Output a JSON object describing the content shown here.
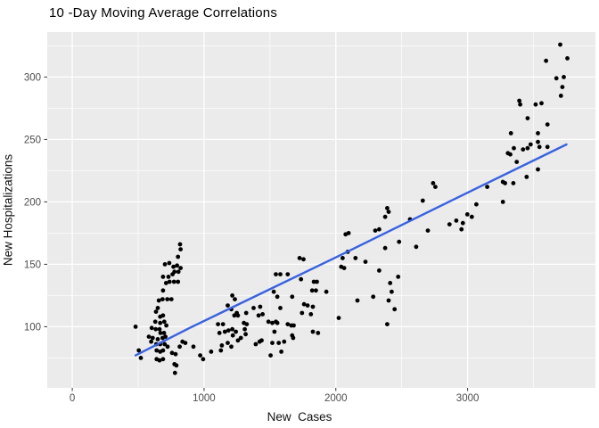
{
  "title": "10 -Day Moving Average Correlations",
  "colors": {
    "background": "#FFFFFF",
    "panel_bg": "#EBEBEB",
    "grid_major": "#FFFFFF",
    "grid_minor": "#FFFFFF",
    "point": "#000000",
    "smooth_line": "#3862E0",
    "tick_label": "#4D4D4D",
    "tick_mark": "#333333",
    "axis_title": "#111111"
  },
  "chart_data": {
    "type": "scatter",
    "title": "10 -Day Moving Average Correlations",
    "xlabel": "New  Cases",
    "ylabel": "New Hospitalizations",
    "xlim": [
      -190,
      3970
    ],
    "ylim": [
      51,
      336
    ],
    "xticks": [
      0,
      1000,
      2000,
      3000
    ],
    "yticks": [
      100,
      150,
      200,
      250,
      300
    ],
    "x_minor": [
      500,
      1500,
      2500,
      3500
    ],
    "y_minor": [
      75,
      125,
      175,
      225,
      275,
      325
    ],
    "grid": true,
    "legend": "none",
    "smooth_line": [
      [
        480,
        77
      ],
      [
        890,
        99
      ],
      [
        1970,
        154
      ],
      [
        3050,
        210
      ],
      [
        3750,
        246
      ]
    ],
    "points": [
      [
        818,
        166
      ],
      [
        822,
        162
      ],
      [
        802,
        156
      ],
      [
        703,
        150
      ],
      [
        736,
        151
      ],
      [
        768,
        148
      ],
      [
        795,
        149
      ],
      [
        822,
        147
      ],
      [
        775,
        144
      ],
      [
        806,
        144
      ],
      [
        689,
        140
      ],
      [
        730,
        140
      ],
      [
        761,
        142
      ],
      [
        712,
        135
      ],
      [
        738,
        136
      ],
      [
        772,
        136
      ],
      [
        802,
        136
      ],
      [
        689,
        129
      ],
      [
        657,
        121
      ],
      [
        685,
        122
      ],
      [
        721,
        122
      ],
      [
        752,
        122
      ],
      [
        649,
        115
      ],
      [
        635,
        112
      ],
      [
        667,
        108
      ],
      [
        689,
        109
      ],
      [
        630,
        104
      ],
      [
        667,
        103
      ],
      [
        698,
        104
      ],
      [
        714,
        101
      ],
      [
        480,
        100
      ],
      [
        603,
        99
      ],
      [
        633,
        98
      ],
      [
        662,
        98
      ],
      [
        581,
        92
      ],
      [
        610,
        91
      ],
      [
        649,
        90
      ],
      [
        669,
        95
      ],
      [
        696,
        95
      ],
      [
        685,
        91
      ],
      [
        707,
        92
      ],
      [
        599,
        88
      ],
      [
        637,
        86
      ],
      [
        667,
        86
      ],
      [
        701,
        86
      ],
      [
        836,
        88
      ],
      [
        858,
        87
      ],
      [
        815,
        84
      ],
      [
        505,
        81
      ],
      [
        640,
        81
      ],
      [
        667,
        80
      ],
      [
        689,
        81
      ],
      [
        723,
        84
      ],
      [
        520,
        75
      ],
      [
        640,
        74
      ],
      [
        662,
        73
      ],
      [
        689,
        74
      ],
      [
        757,
        79
      ],
      [
        784,
        78
      ],
      [
        775,
        70
      ],
      [
        790,
        69
      ],
      [
        779,
        63
      ],
      [
        919,
        84
      ],
      [
        971,
        77
      ],
      [
        993,
        74
      ],
      [
        1054,
        80
      ],
      [
        1106,
        102
      ],
      [
        1117,
        95
      ],
      [
        1128,
        81
      ],
      [
        1135,
        85
      ],
      [
        1144,
        102
      ],
      [
        1158,
        96
      ],
      [
        1180,
        117
      ],
      [
        1180,
        87
      ],
      [
        1185,
        97
      ],
      [
        1207,
        114
      ],
      [
        1207,
        84
      ],
      [
        1214,
        125
      ],
      [
        1214,
        98
      ],
      [
        1218,
        93
      ],
      [
        1230,
        109
      ],
      [
        1234,
        122
      ],
      [
        1241,
        96
      ],
      [
        1248,
        111
      ],
      [
        1257,
        109
      ],
      [
        1257,
        89
      ],
      [
        1279,
        91
      ],
      [
        1302,
        103
      ],
      [
        1309,
        98
      ],
      [
        1316,
        94
      ],
      [
        1320,
        111
      ],
      [
        1324,
        102
      ],
      [
        1376,
        115
      ],
      [
        1392,
        86
      ],
      [
        1414,
        109
      ],
      [
        1421,
        88
      ],
      [
        1426,
        116
      ],
      [
        1437,
        89
      ],
      [
        1444,
        110
      ],
      [
        1489,
        104
      ],
      [
        1505,
        77
      ],
      [
        1518,
        103
      ],
      [
        1518,
        87
      ],
      [
        1529,
        128
      ],
      [
        1534,
        96
      ],
      [
        1545,
        142
      ],
      [
        1545,
        104
      ],
      [
        1556,
        124
      ],
      [
        1556,
        103
      ],
      [
        1567,
        87
      ],
      [
        1579,
        142
      ],
      [
        1579,
        115
      ],
      [
        1586,
        80
      ],
      [
        1608,
        88
      ],
      [
        1635,
        142
      ],
      [
        1635,
        102
      ],
      [
        1662,
        101
      ],
      [
        1669,
        124
      ],
      [
        1669,
        93
      ],
      [
        1676,
        91
      ],
      [
        1680,
        101
      ],
      [
        1725,
        155
      ],
      [
        1736,
        138
      ],
      [
        1743,
        111
      ],
      [
        1755,
        154
      ],
      [
        1759,
        118
      ],
      [
        1786,
        117
      ],
      [
        1811,
        110
      ],
      [
        1820,
        129
      ],
      [
        1826,
        116
      ],
      [
        1826,
        96
      ],
      [
        1833,
        136
      ],
      [
        1849,
        129
      ],
      [
        1856,
        136
      ],
      [
        1865,
        95
      ],
      [
        1928,
        128
      ],
      [
        2022,
        107
      ],
      [
        2041,
        148
      ],
      [
        2052,
        155
      ],
      [
        2063,
        147
      ],
      [
        2074,
        174
      ],
      [
        2090,
        160
      ],
      [
        2097,
        175
      ],
      [
        2149,
        155
      ],
      [
        2164,
        121
      ],
      [
        2225,
        152
      ],
      [
        2284,
        124
      ],
      [
        2299,
        177
      ],
      [
        2329,
        178
      ],
      [
        2329,
        145
      ],
      [
        2374,
        188
      ],
      [
        2374,
        163
      ],
      [
        2390,
        195
      ],
      [
        2390,
        102
      ],
      [
        2401,
        192
      ],
      [
        2401,
        121
      ],
      [
        2412,
        135
      ],
      [
        2424,
        128
      ],
      [
        2446,
        114
      ],
      [
        2473,
        140
      ],
      [
        2480,
        168
      ],
      [
        2563,
        186
      ],
      [
        2610,
        164
      ],
      [
        2660,
        201
      ],
      [
        2698,
        177
      ],
      [
        2738,
        215
      ],
      [
        2755,
        212
      ],
      [
        2863,
        182
      ],
      [
        2914,
        185
      ],
      [
        2953,
        178
      ],
      [
        2964,
        183
      ],
      [
        2998,
        190
      ],
      [
        3032,
        188
      ],
      [
        3066,
        198
      ],
      [
        3149,
        212
      ],
      [
        3268,
        216
      ],
      [
        3268,
        200
      ],
      [
        3284,
        215
      ],
      [
        3306,
        239
      ],
      [
        3324,
        238
      ],
      [
        3329,
        255
      ],
      [
        3347,
        215
      ],
      [
        3351,
        243
      ],
      [
        3373,
        232
      ],
      [
        3392,
        281
      ],
      [
        3399,
        278
      ],
      [
        3421,
        242
      ],
      [
        3448,
        220
      ],
      [
        3455,
        267
      ],
      [
        3455,
        243
      ],
      [
        3478,
        246
      ],
      [
        3516,
        278
      ],
      [
        3534,
        255
      ],
      [
        3534,
        248
      ],
      [
        3534,
        226
      ],
      [
        3545,
        244
      ],
      [
        3561,
        279
      ],
      [
        3595,
        313
      ],
      [
        3606,
        262
      ],
      [
        3606,
        244
      ],
      [
        3674,
        299
      ],
      [
        3703,
        326
      ],
      [
        3708,
        285
      ],
      [
        3719,
        292
      ],
      [
        3730,
        300
      ],
      [
        3757,
        315
      ]
    ]
  }
}
